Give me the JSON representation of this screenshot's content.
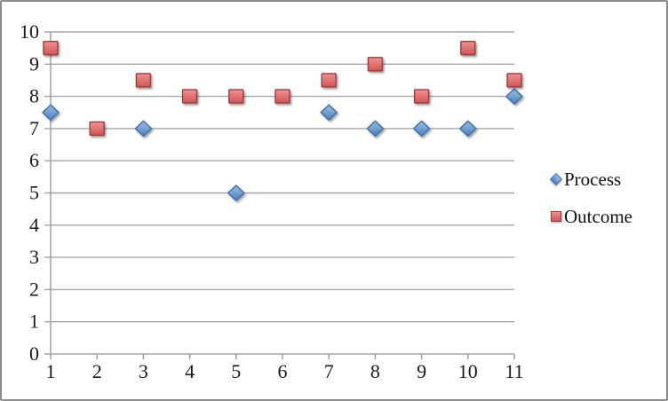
{
  "chart_data": {
    "type": "scatter",
    "x": [
      1,
      2,
      3,
      4,
      5,
      6,
      7,
      8,
      9,
      10,
      11
    ],
    "x_ticks": [
      "1",
      "2",
      "3",
      "4",
      "5",
      "6",
      "7",
      "8",
      "9",
      "10",
      "11"
    ],
    "y_ticks": [
      "0",
      "1",
      "2",
      "3",
      "4",
      "5",
      "6",
      "7",
      "8",
      "9",
      "10"
    ],
    "ylim": [
      0,
      10
    ],
    "title": "",
    "xlabel": "",
    "ylabel": "",
    "grid": "horizontal",
    "legend_position": "right",
    "gridline_color": "#a6a6a6",
    "axis_color": "#9a9a9a",
    "text_color": "#1a1a1a",
    "frame_border_color": "#8c8c8c",
    "background_color": "#ffffff",
    "series": [
      {
        "name": "Process",
        "marker": "diamond",
        "fill_top": "#9bbfe4",
        "fill_bottom": "#4e80bc",
        "border": "#3e6fa8",
        "values": [
          7.5,
          null,
          7,
          null,
          5,
          null,
          7.5,
          7,
          7,
          7,
          8
        ]
      },
      {
        "name": "Outcome",
        "marker": "square",
        "fill_top": "#ec9494",
        "fill_bottom": "#d25454",
        "border": "#9e3b3b",
        "values": [
          9.5,
          7,
          8.5,
          8,
          8,
          8,
          8.5,
          9,
          8,
          9.5,
          8.5
        ]
      }
    ]
  }
}
